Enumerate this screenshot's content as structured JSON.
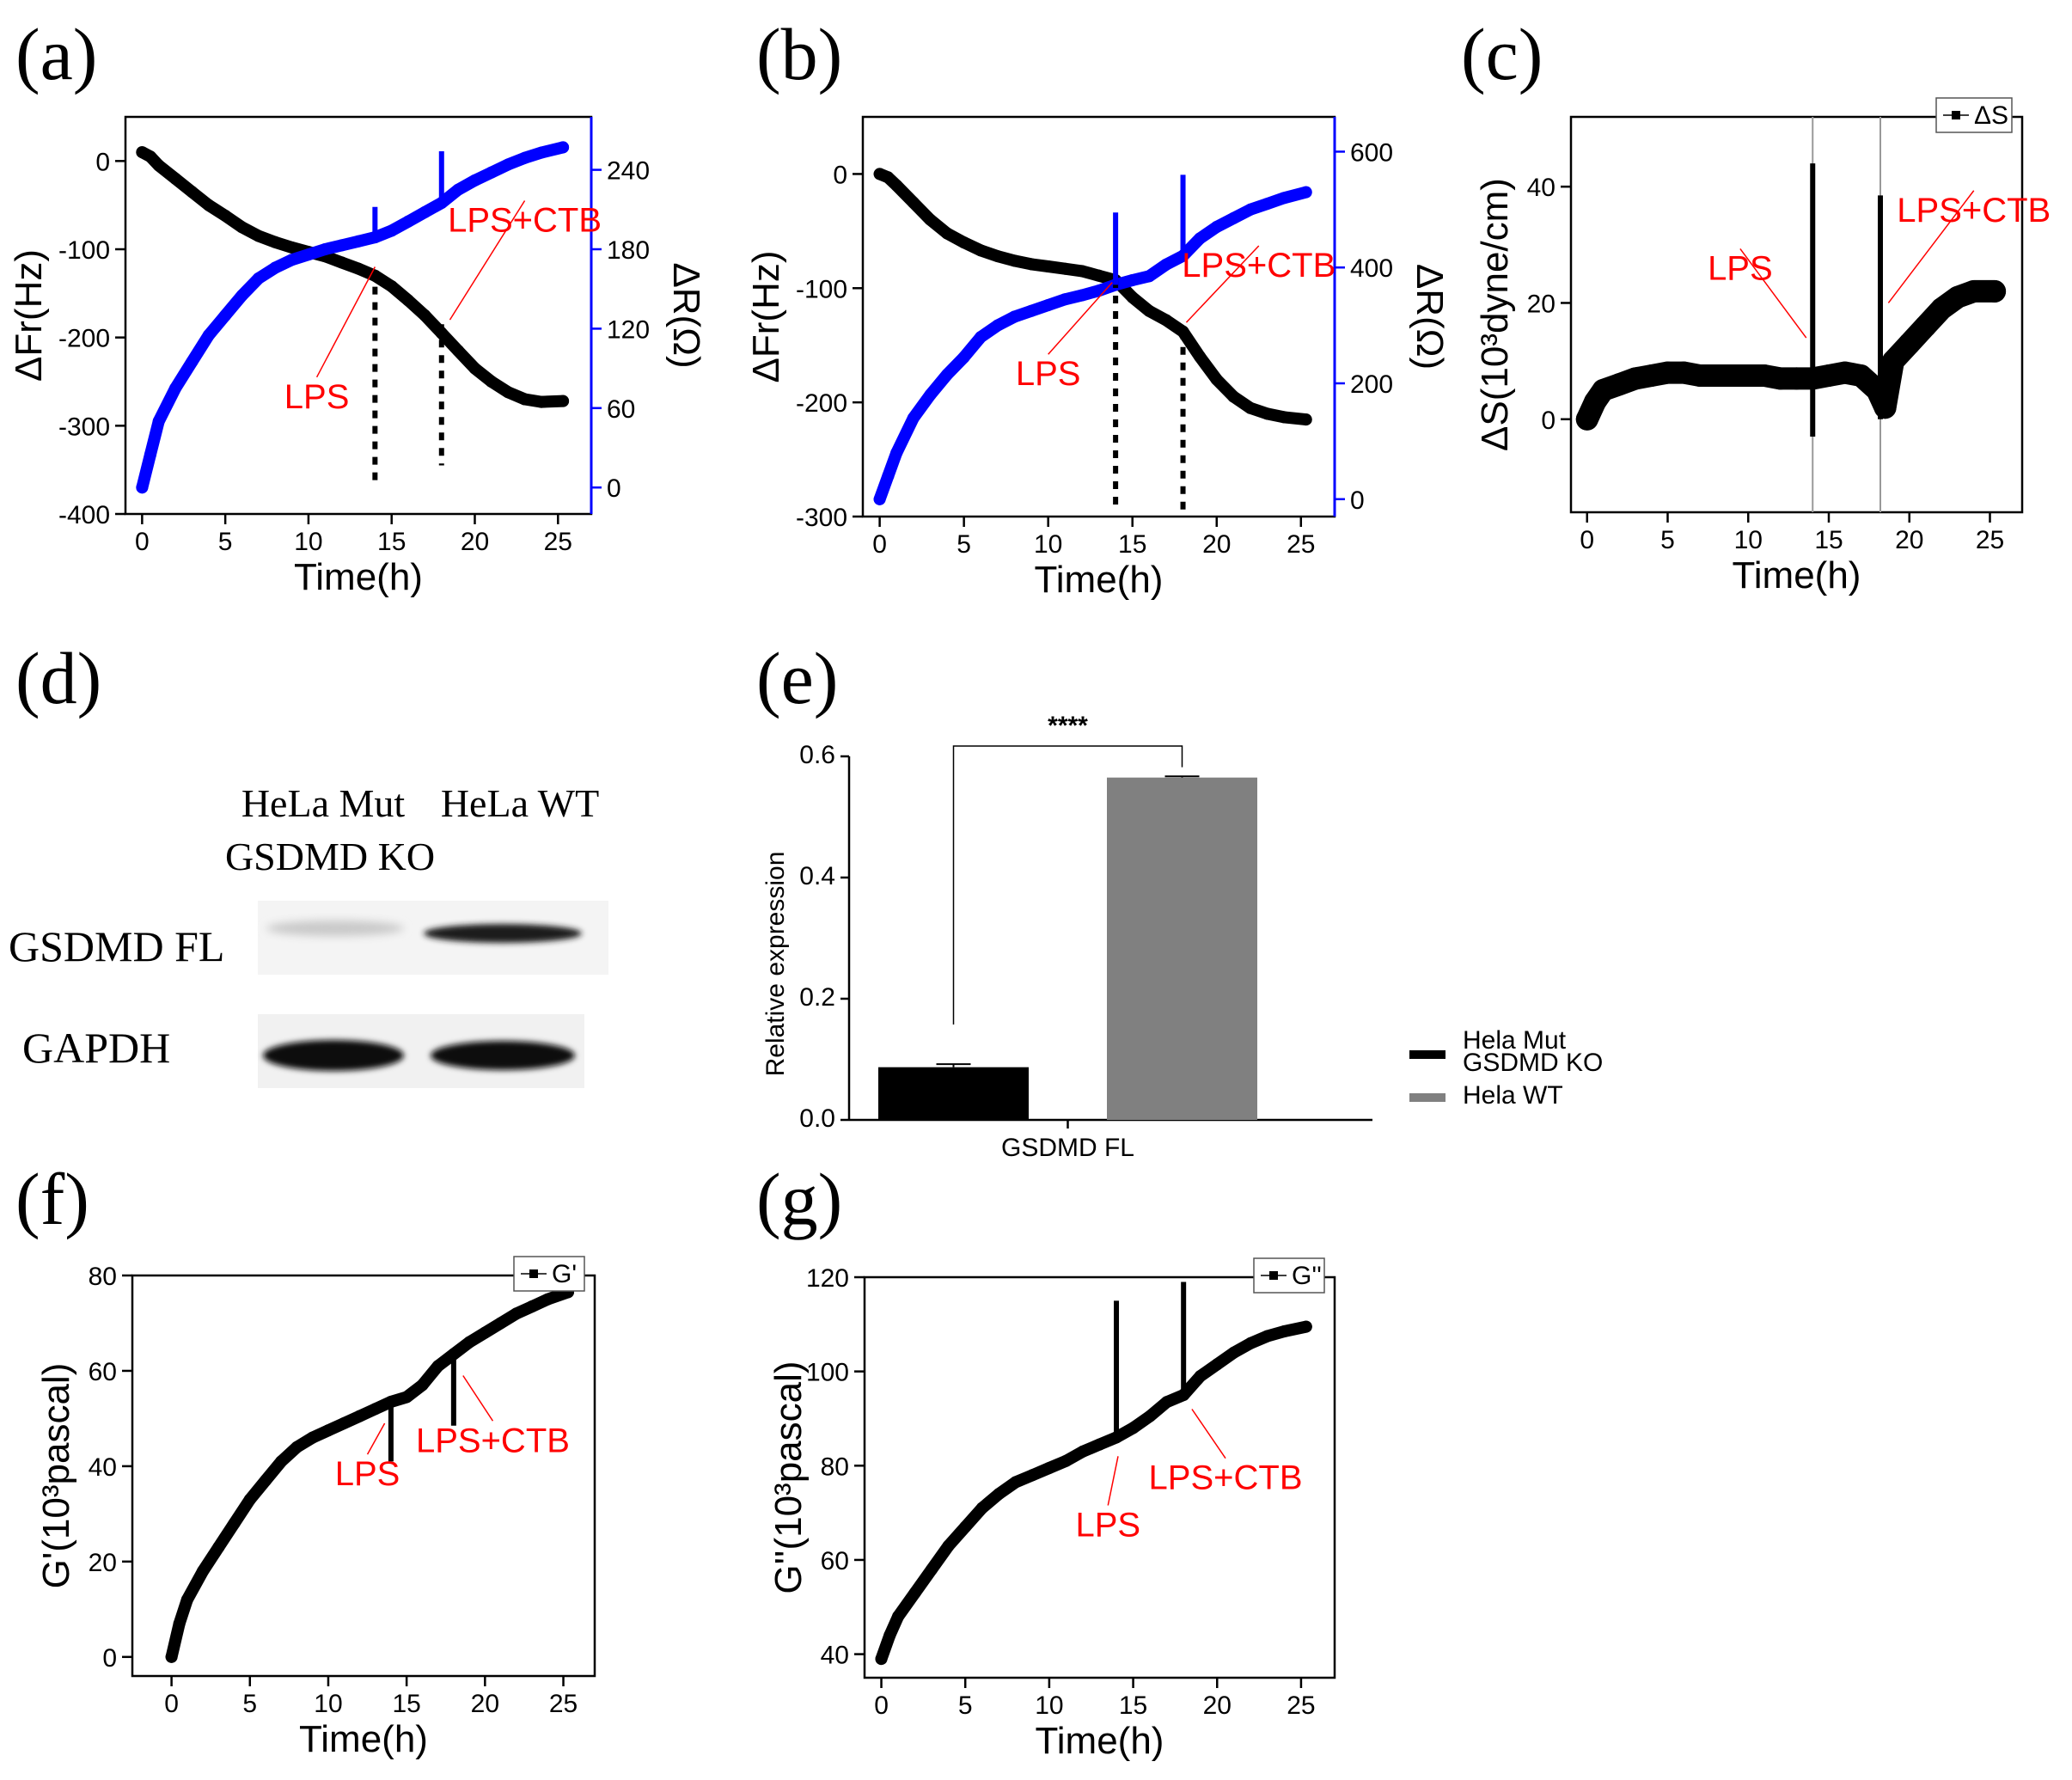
{
  "chart_data": [
    {
      "panel": "(a)",
      "type": "line",
      "xlabel": "Time(h)",
      "ylabel": "ΔFr(Hz)",
      "y2label": "ΔR(Ω)",
      "xlim": [
        -1,
        27
      ],
      "ylim": [
        -400,
        50
      ],
      "y2lim": [
        -20,
        280
      ],
      "xticks": [
        0,
        5,
        10,
        15,
        20,
        25
      ],
      "yticks": [
        -400,
        -300,
        -200,
        -100,
        0
      ],
      "y2ticks": [
        0,
        60,
        120,
        180,
        240
      ],
      "series": [
        {
          "name": "ΔFr",
          "axis": "left",
          "color": "#000000",
          "x": [
            0,
            0.5,
            1,
            2,
            3,
            4,
            5,
            6,
            7,
            8,
            9,
            10,
            11,
            12,
            13,
            14,
            15,
            16,
            17,
            18,
            19,
            20,
            21,
            22,
            23,
            24,
            25.3
          ],
          "y": [
            10,
            5,
            -5,
            -20,
            -35,
            -50,
            -62,
            -75,
            -85,
            -92,
            -98,
            -103,
            -108,
            -115,
            -122,
            -130,
            -142,
            -158,
            -175,
            -195,
            -215,
            -235,
            -250,
            -262,
            -270,
            -273,
            -272
          ]
        },
        {
          "name": "ΔR",
          "axis": "right",
          "color": "#0000ff",
          "x": [
            0,
            0.5,
            1,
            2,
            3,
            4,
            5,
            6,
            7,
            8,
            9,
            10,
            11,
            12,
            13,
            14,
            15,
            16,
            17,
            18,
            19,
            20,
            21,
            22,
            23,
            24,
            25.3
          ],
          "y": [
            0,
            25,
            50,
            75,
            95,
            115,
            130,
            145,
            158,
            166,
            172,
            176,
            180,
            183,
            186,
            189,
            194,
            201,
            208,
            215,
            225,
            232,
            238,
            244,
            249,
            253,
            257
          ]
        }
      ],
      "spikes": [
        {
          "x": 14,
          "axis": "left",
          "from": -125,
          "to": -365
        },
        {
          "x": 18,
          "axis": "left",
          "from": -185,
          "to": -345
        },
        {
          "x": 14,
          "axis": "right",
          "from": 189,
          "to": 212
        },
        {
          "x": 18,
          "axis": "right",
          "from": 215,
          "to": 254
        }
      ],
      "annotations": [
        {
          "text": "LPS",
          "x": 14,
          "y": -120,
          "axis": "left",
          "tx": 10.5,
          "ty": -280
        },
        {
          "text": "LPS+CTB",
          "x": 18.5,
          "y": -180,
          "axis": "left",
          "tx": 23,
          "ty": -80
        }
      ]
    },
    {
      "panel": "(b)",
      "type": "line",
      "xlabel": "Time(h)",
      "ylabel": "ΔFr(Hz)",
      "y2label": "ΔR(Ω)",
      "xlim": [
        -1,
        27
      ],
      "ylim": [
        -300,
        50
      ],
      "y2lim": [
        -30,
        660
      ],
      "xticks": [
        0,
        5,
        10,
        15,
        20,
        25
      ],
      "yticks": [
        -300,
        -200,
        -100,
        0
      ],
      "y2ticks": [
        0,
        200,
        400,
        600
      ],
      "series": [
        {
          "name": "ΔFr",
          "axis": "left",
          "color": "#000000",
          "x": [
            0,
            0.5,
            1,
            2,
            3,
            4,
            5,
            6,
            7,
            8,
            9,
            10,
            11,
            12,
            13,
            14,
            15,
            16,
            17,
            18,
            19,
            20,
            21,
            22,
            23,
            24,
            25.3
          ],
          "y": [
            0,
            -3,
            -10,
            -25,
            -40,
            -52,
            -60,
            -67,
            -72,
            -76,
            -79,
            -81,
            -83,
            -85,
            -89,
            -93,
            -108,
            -120,
            -128,
            -138,
            -160,
            -180,
            -195,
            -205,
            -210,
            -213,
            -215
          ]
        },
        {
          "name": "ΔR",
          "axis": "right",
          "color": "#0000ff",
          "x": [
            0,
            0.5,
            1,
            2,
            3,
            4,
            5,
            6,
            7,
            8,
            9,
            10,
            11,
            12,
            13,
            14,
            15,
            16,
            17,
            18,
            19,
            20,
            21,
            22,
            23,
            24,
            25.3
          ],
          "y": [
            0,
            40,
            80,
            140,
            180,
            215,
            245,
            280,
            300,
            315,
            325,
            335,
            345,
            352,
            360,
            370,
            378,
            385,
            405,
            420,
            450,
            470,
            485,
            500,
            510,
            520,
            530
          ]
        }
      ],
      "spikes": [
        {
          "x": 14,
          "axis": "left",
          "from": -93,
          "to": -295
        },
        {
          "x": 18,
          "axis": "left",
          "from": -138,
          "to": -298
        },
        {
          "x": 14,
          "axis": "right",
          "from": 370,
          "to": 495
        },
        {
          "x": 18,
          "axis": "right",
          "from": 420,
          "to": 560
        }
      ],
      "annotations": [
        {
          "text": "LPS",
          "x": 13.8,
          "y": -95,
          "axis": "left",
          "tx": 10,
          "ty": -185
        },
        {
          "text": "LPS+CTB",
          "x": 18.2,
          "y": -130,
          "axis": "left",
          "tx": 22.5,
          "ty": -90
        }
      ]
    },
    {
      "panel": "(c)",
      "type": "scatter",
      "xlabel": "Time(h)",
      "ylabel": "ΔS(10³dyne/cm)",
      "xlim": [
        -1,
        27
      ],
      "ylim": [
        -16,
        52
      ],
      "xticks": [
        0,
        5,
        10,
        15,
        20,
        25
      ],
      "yticks": [
        0,
        20,
        40
      ],
      "legend": [
        "ΔS"
      ],
      "legend_position": "top-right",
      "series": [
        {
          "name": "ΔS",
          "color": "#000000",
          "x": [
            0,
            0.5,
            1,
            2,
            3,
            4,
            5,
            6,
            7,
            8,
            9,
            10,
            11,
            12,
            13,
            14,
            15,
            16,
            17,
            18,
            18.5,
            19,
            20,
            21,
            22,
            23,
            24,
            25.3
          ],
          "y": [
            0,
            3,
            5,
            6,
            7,
            7.5,
            8,
            8,
            7.5,
            7.5,
            7.5,
            7.5,
            7.5,
            7,
            7,
            7,
            7.5,
            8,
            7.5,
            5,
            2,
            10,
            13,
            16,
            19,
            21,
            22,
            22
          ]
        }
      ],
      "vlines": [
        14,
        18.2
      ],
      "spikes": [
        {
          "x": 14,
          "from": -3,
          "to": 44
        },
        {
          "x": 18.2,
          "from": 0,
          "to": 38.5
        }
      ],
      "annotations": [
        {
          "text": "LPS",
          "x": 13.6,
          "y": 14,
          "tx": 9.5,
          "ty": 24
        },
        {
          "text": "LPS+CTB",
          "x": 18.7,
          "y": 20,
          "tx": 24,
          "ty": 34
        }
      ]
    },
    {
      "panel": "(e)",
      "type": "bar",
      "categories": [
        "GSDMD FL"
      ],
      "xlabel": "",
      "ylabel": "Relative expression",
      "ylim": [
        0,
        0.6
      ],
      "yticks": [
        "0.0",
        "0.2",
        "0.4",
        "0.6"
      ],
      "series": [
        {
          "name": "Hela Mut GSDMD KO",
          "color": "#000000",
          "values": [
            0.087
          ],
          "error": [
            0.005
          ]
        },
        {
          "name": "Hela WT",
          "color": "#808080",
          "values": [
            0.565
          ],
          "error": [
            0.002
          ]
        }
      ],
      "significance": "****",
      "legend": [
        "Hela Mut",
        "GSDMD KO",
        "Hela WT"
      ]
    },
    {
      "panel": "(f)",
      "type": "line",
      "xlabel": "Time(h)",
      "ylabel": "G'(10³pascal)",
      "xlim": [
        -2.5,
        27
      ],
      "ylim": [
        -4,
        80
      ],
      "xticks": [
        0,
        5,
        10,
        15,
        20,
        25
      ],
      "yticks": [
        0,
        20,
        40,
        60,
        80
      ],
      "legend": [
        "G'"
      ],
      "legend_position": "top-right",
      "series": [
        {
          "name": "G'",
          "color": "#000000",
          "x": [
            0,
            0.5,
            1,
            2,
            3,
            4,
            5,
            6,
            7,
            8,
            9,
            10,
            11,
            12,
            13,
            14,
            15,
            16,
            17,
            18,
            19,
            20,
            21,
            22,
            23,
            24,
            25.3
          ],
          "y": [
            0,
            7,
            12,
            18,
            23,
            28,
            33,
            37,
            41,
            44,
            46,
            47.5,
            49,
            50.5,
            52,
            53.5,
            54.5,
            57,
            61,
            63.5,
            66,
            68,
            70,
            72,
            73.5,
            75,
            76.5
          ]
        }
      ],
      "spikes": [
        {
          "x": 14,
          "from": 53.5,
          "to": 41
        },
        {
          "x": 18,
          "from": 63.5,
          "to": 48.5
        }
      ],
      "annotations": [
        {
          "text": "LPS",
          "x": 13.6,
          "y": 49,
          "tx": 12.5,
          "ty": 36
        },
        {
          "text": "LPS+CTB",
          "x": 18.6,
          "y": 59,
          "tx": 20.5,
          "ty": 43
        }
      ]
    },
    {
      "panel": "(g)",
      "type": "line",
      "xlabel": "Time(h)",
      "ylabel": "G''(10³pascal)",
      "xlim": [
        -1,
        27
      ],
      "ylim": [
        35,
        120
      ],
      "xticks": [
        0,
        5,
        10,
        15,
        20,
        25
      ],
      "yticks": [
        40,
        60,
        80,
        100,
        120
      ],
      "legend": [
        "G''"
      ],
      "legend_position": "top-right",
      "series": [
        {
          "name": "G''",
          "color": "#000000",
          "x": [
            0,
            0.5,
            1,
            2,
            3,
            4,
            5,
            6,
            7,
            8,
            9,
            10,
            11,
            12,
            13,
            14,
            15,
            16,
            17,
            18,
            19,
            20,
            21,
            22,
            23,
            24,
            25.3
          ],
          "y": [
            39,
            44,
            48,
            53,
            58,
            63,
            67,
            71,
            74,
            76.5,
            78,
            79.5,
            81,
            83,
            84.5,
            86,
            88,
            90.5,
            93.5,
            95,
            99,
            101.5,
            104,
            106,
            107.5,
            108.5,
            109.5
          ]
        }
      ],
      "spikes": [
        {
          "x": 14,
          "from": 86,
          "to": 115
        },
        {
          "x": 18,
          "from": 95,
          "to": 119
        }
      ],
      "annotations": [
        {
          "text": "LPS",
          "x": 14.1,
          "y": 82,
          "tx": 13.5,
          "ty": 65
        },
        {
          "text": "LPS+CTB",
          "x": 18.5,
          "y": 92,
          "tx": 20.5,
          "ty": 75
        }
      ]
    }
  ],
  "blot": {
    "col1_line1": "HeLa Mut",
    "col1_line2": "GSDMD KO",
    "col2": "HeLa WT",
    "row1": "GSDMD FL",
    "row2": "GAPDH"
  }
}
